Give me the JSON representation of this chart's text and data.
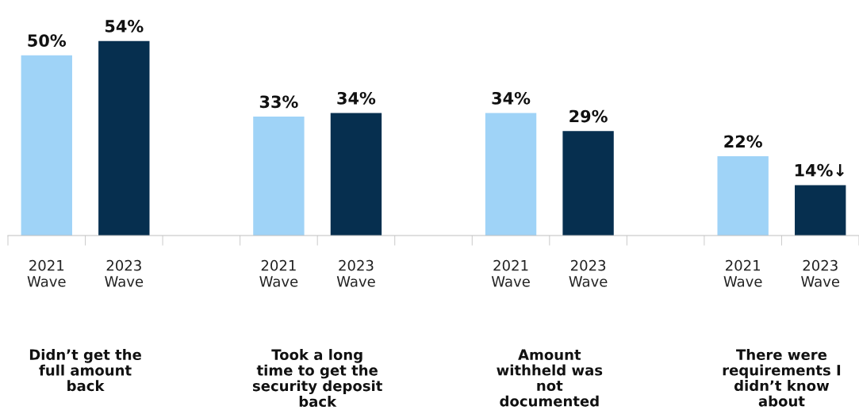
{
  "chart_data": {
    "type": "bar",
    "categories": [
      "2021\nWave",
      "2023\nWave",
      null,
      "2021\nWave",
      "2023\nWave",
      null,
      "2021\nWave",
      "2023\nWave",
      null,
      "2021\nWave",
      "2023\nWave"
    ],
    "values": [
      50,
      54,
      null,
      33,
      34,
      null,
      34,
      29,
      null,
      22,
      14
    ],
    "colors": [
      "#9fd3f7",
      "#062f4f",
      null,
      "#9fd3f7",
      "#062f4f",
      null,
      "#9fd3f7",
      "#062f4f",
      null,
      "#9fd3f7",
      "#062f4f"
    ],
    "value_labels": [
      "50%",
      "54%",
      null,
      "33%",
      "34%",
      null,
      "34%",
      "29%",
      null,
      "22%",
      "14%↓"
    ],
    "annotations": [
      "Didn’t get the\nfull amount\nback",
      "Took a long\ntime to get the\nsecurity deposit\nback",
      "Amount\nwithheld was\nnot\ndocumented",
      "There were\nrequirements I\ndidn’t know\nabout"
    ],
    "grid": false,
    "legend": false
  }
}
